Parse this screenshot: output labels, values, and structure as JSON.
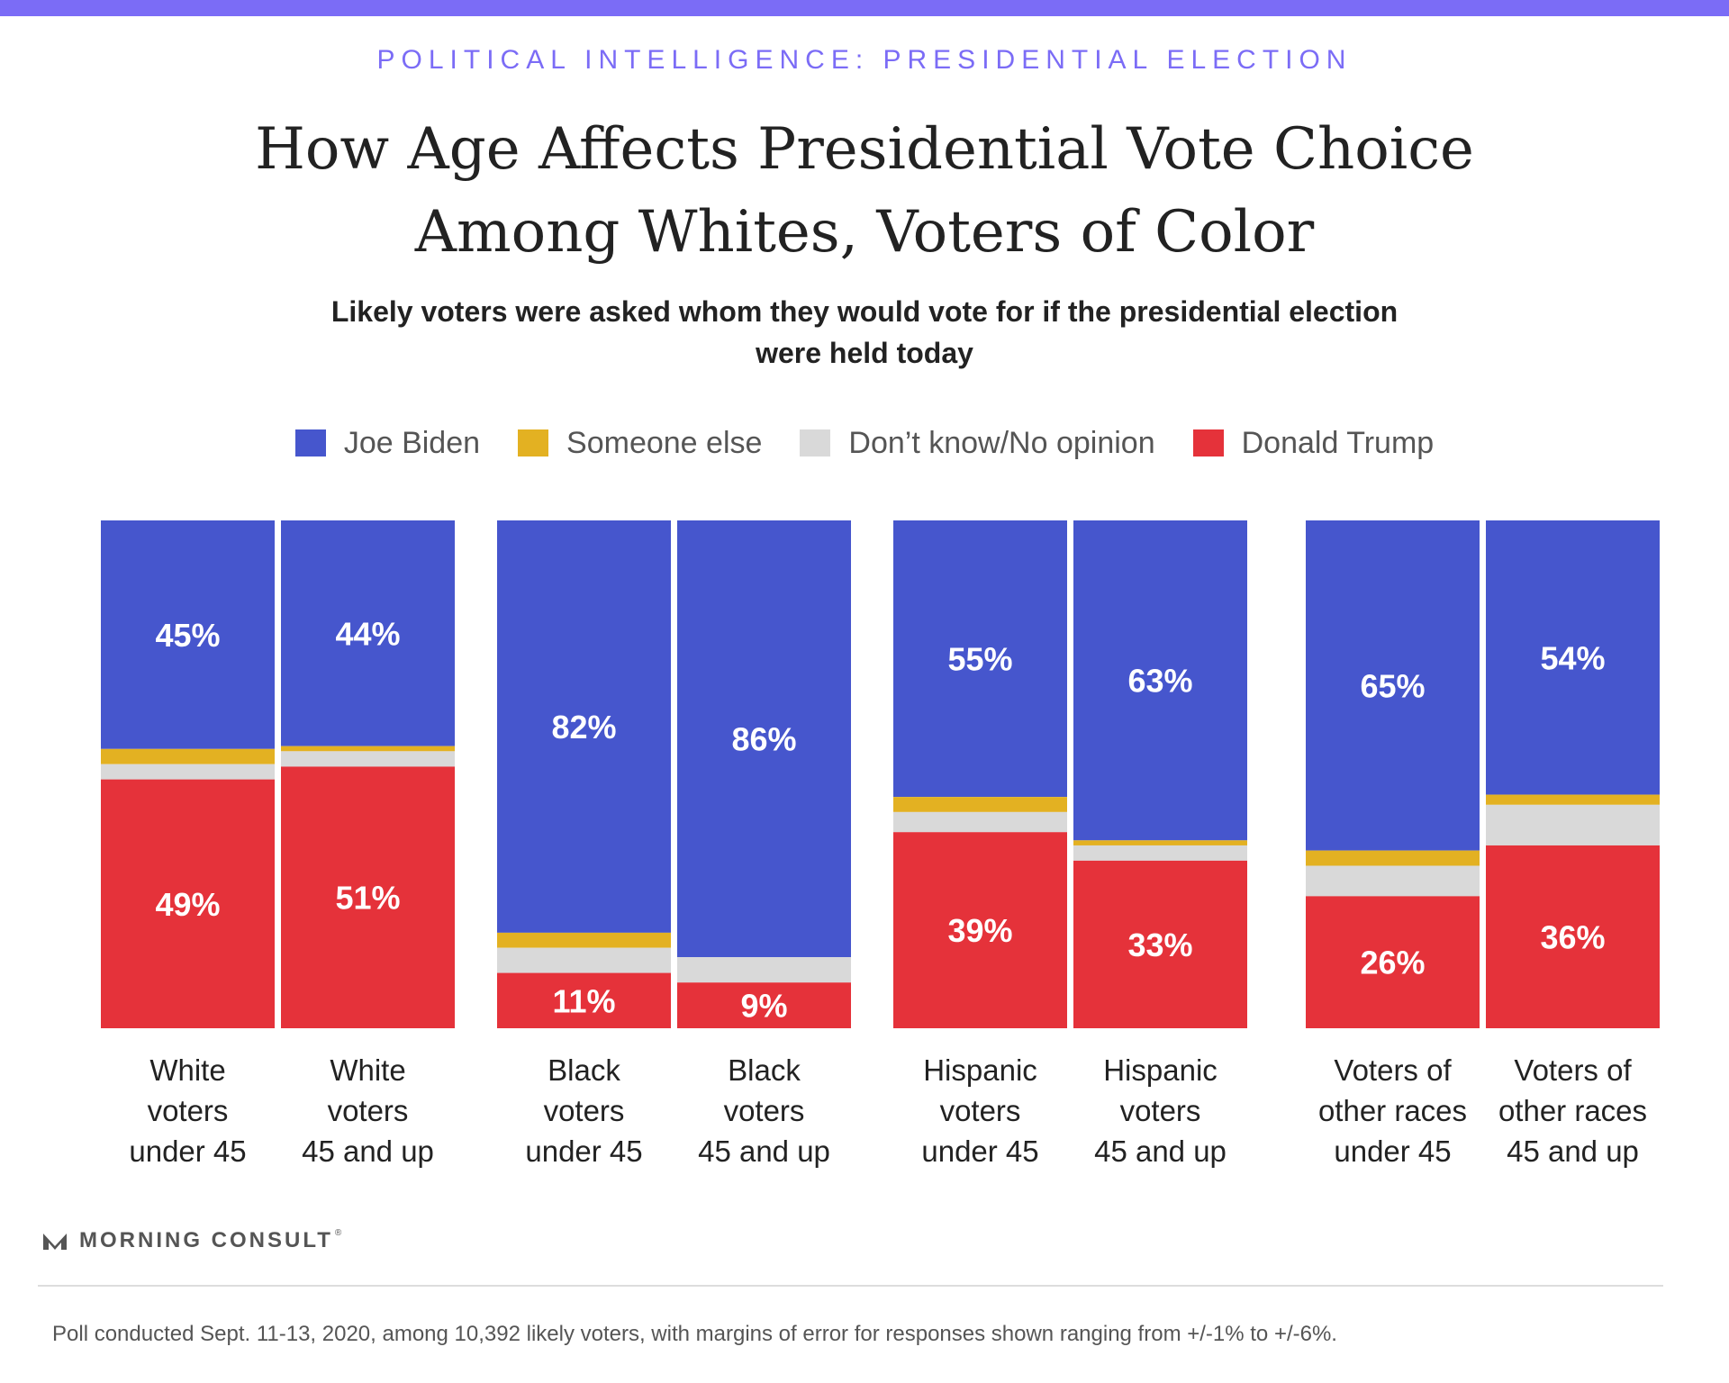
{
  "header": {
    "kicker": "POLITICAL INTELLIGENCE: PRESIDENTIAL ELECTION",
    "title": "How Age Affects Presidential Vote Choice Among Whites, Voters of Color",
    "subtitle": "Likely voters were asked whom they would vote for if the presidential election were held today"
  },
  "colors": {
    "biden": "#4656cd",
    "someone_else": "#e3b122",
    "dont_know": "#d9d9d9",
    "trump": "#e5323a",
    "accent": "#7b6cf6"
  },
  "legend": [
    {
      "label": "Joe Biden",
      "color": "#4656cd"
    },
    {
      "label": "Someone else",
      "color": "#e3b122"
    },
    {
      "label": "Don’t know/No opinion",
      "color": "#d9d9d9"
    },
    {
      "label": "Donald Trump",
      "color": "#e5323a"
    }
  ],
  "chart_data": {
    "type": "bar",
    "stacked": true,
    "orientation": "vertical",
    "categories": [
      "White voters under 45",
      "White voters 45 and up",
      "Black voters under 45",
      "Black voters 45 and up",
      "Hispanic voters under 45",
      "Hispanic voters 45 and up",
      "Voters of other races under 45",
      "Voters of other races 45 and up"
    ],
    "category_lines": [
      [
        "White",
        "voters",
        "under 45"
      ],
      [
        "White",
        "voters",
        "45 and up"
      ],
      [
        "Black",
        "voters",
        "under 45"
      ],
      [
        "Black",
        "voters",
        "45 and up"
      ],
      [
        "Hispanic",
        "voters",
        "under 45"
      ],
      [
        "Hispanic",
        "voters",
        "45 and up"
      ],
      [
        "Voters of",
        "other races",
        "under 45"
      ],
      [
        "Voters of",
        "other races",
        "45 and up"
      ]
    ],
    "series": [
      {
        "name": "Joe Biden",
        "values": [
          45,
          44,
          82,
          86,
          55,
          63,
          65,
          54
        ]
      },
      {
        "name": "Someone else",
        "values": [
          3,
          1,
          3,
          0,
          3,
          1,
          3,
          2
        ]
      },
      {
        "name": "Don’t know/No opinion",
        "values": [
          3,
          3,
          5,
          5,
          4,
          3,
          6,
          8
        ]
      },
      {
        "name": "Donald Trump",
        "values": [
          49,
          51,
          11,
          9,
          39,
          33,
          26,
          36
        ]
      }
    ],
    "data_labels": {
      "biden": [
        "45%",
        "44%",
        "82%",
        "86%",
        "55%",
        "63%",
        "65%",
        "54%"
      ],
      "trump": [
        "49%",
        "51%",
        "11%",
        "9%",
        "39%",
        "33%",
        "26%",
        "36%"
      ]
    },
    "ylim": [
      0,
      100
    ],
    "legend_position": "top"
  },
  "brand": {
    "name": "MORNING CONSULT",
    "mark": "®"
  },
  "footnote": "Poll conducted Sept. 11-13, 2020, among 10,392 likely voters, with margins of error for responses shown ranging from +/-1% to +/-6%."
}
